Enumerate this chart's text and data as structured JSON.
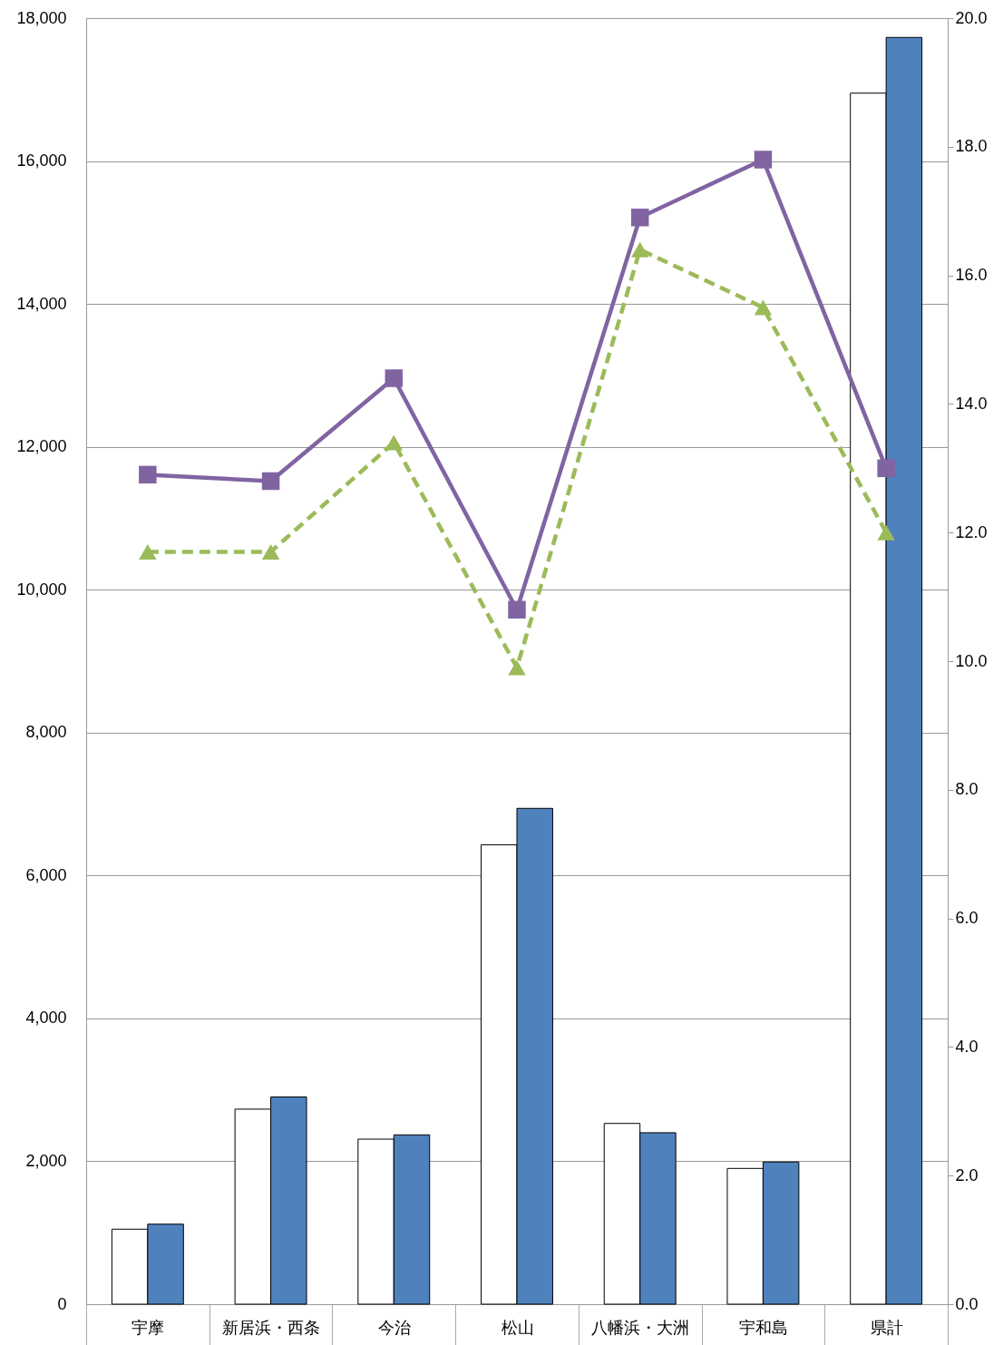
{
  "chart_data": {
    "type": "bar",
    "categories": [
      "宇摩",
      "新居浜・西条",
      "今治",
      "松山",
      "八幡浜・大洲",
      "宇和島",
      "県計"
    ],
    "series": [
      {
        "type": "bar",
        "color": "#ffffff",
        "values": [
          1050,
          2730,
          2310,
          6430,
          2530,
          1900,
          16950
        ]
      },
      {
        "type": "bar",
        "color": "#4f81bd",
        "values": [
          1120,
          2900,
          2370,
          6940,
          2400,
          1990,
          17730
        ]
      },
      {
        "type": "line",
        "axis": "y2",
        "color": "#8064a2",
        "marker": "square",
        "line_style": "solid",
        "values": [
          12.9,
          12.8,
          14.4,
          10.8,
          16.9,
          17.8,
          13.0
        ]
      },
      {
        "type": "line",
        "axis": "y2",
        "color": "#9bbb59",
        "marker": "triangle",
        "line_style": "dashed",
        "values": [
          11.7,
          11.7,
          13.4,
          9.9,
          16.4,
          15.5,
          12.0
        ]
      }
    ],
    "ylim": [
      0,
      18000
    ],
    "yticks": [
      0,
      {
        "value": 2000,
        "label": "2,000"
      },
      {
        "value": 4000,
        "label": "4,000"
      },
      {
        "value": 6000,
        "label": "6,000"
      },
      {
        "value": 8000,
        "label": "8,000"
      },
      {
        "value": 10000,
        "label": "10,000"
      },
      {
        "value": 12000,
        "label": "12,000"
      },
      {
        "value": 14000,
        "label": "14,000"
      },
      {
        "value": 16000,
        "label": "16,000"
      },
      {
        "value": 18000,
        "label": "18,000"
      }
    ],
    "y2lim": [
      0,
      20
    ],
    "y2ticks": [
      {
        "value": 0,
        "label": "0.0"
      },
      {
        "value": 2,
        "label": "2.0"
      },
      {
        "value": 4,
        "label": "4.0"
      },
      {
        "value": 6,
        "label": "6.0"
      },
      {
        "value": 8,
        "label": "8.0"
      },
      {
        "value": 10,
        "label": "10.0"
      },
      {
        "value": 12,
        "label": "12.0"
      },
      {
        "value": 14,
        "label": "14.0"
      },
      {
        "value": 16,
        "label": "16.0"
      },
      {
        "value": 18,
        "label": "18.0"
      },
      {
        "value": 20,
        "label": "20.0"
      }
    ],
    "grid": "y"
  }
}
